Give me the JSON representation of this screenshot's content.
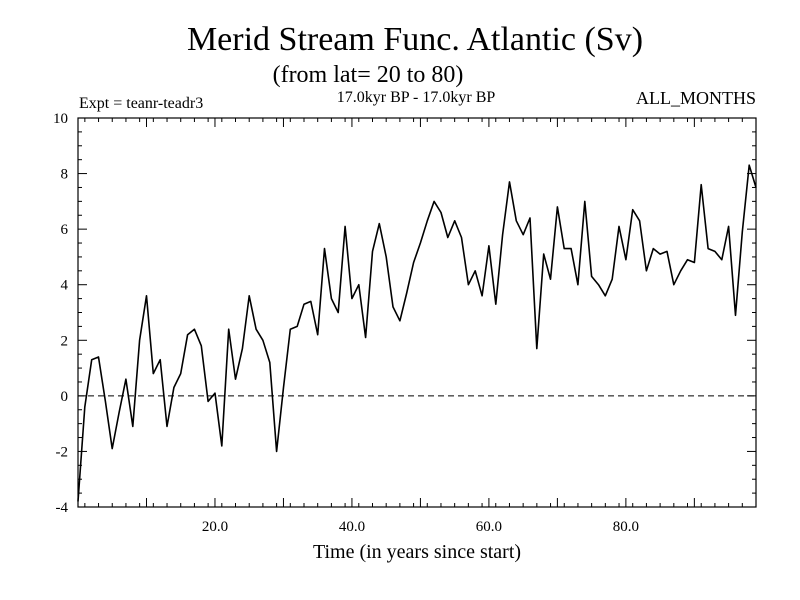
{
  "chart_data": {
    "type": "line",
    "title": "Merid Stream Func. Atlantic (Sv)",
    "subtitle": "(from lat= 20 to 80)",
    "expt_label": "Expt = teanr-teadr3",
    "period_label": "17.0kyr BP - 17.0kyr BP",
    "months_label": "ALL_MONTHS",
    "xlabel": "Time (in years since start)",
    "ylabel": "",
    "xlim": [
      0,
      99
    ],
    "ylim": [
      -4,
      10
    ],
    "x_ticks": [
      20,
      40,
      60,
      80
    ],
    "x_tick_labels": [
      "20.0",
      "40.0",
      "60.0",
      "80.0"
    ],
    "y_ticks": [
      -4,
      -2,
      0,
      2,
      4,
      6,
      8,
      10
    ],
    "y_tick_labels": [
      "-4",
      "-2",
      "0",
      "2",
      "4",
      "6",
      "8",
      "10"
    ],
    "zero_line": "dashed",
    "series": [
      {
        "name": "Merid Stream Func.",
        "x": [
          0,
          1,
          2,
          3,
          4,
          5,
          6,
          7,
          8,
          9,
          10,
          11,
          12,
          13,
          14,
          15,
          16,
          17,
          18,
          19,
          20,
          21,
          22,
          23,
          24,
          25,
          26,
          27,
          28,
          29,
          30,
          31,
          32,
          33,
          34,
          35,
          36,
          37,
          38,
          39,
          40,
          41,
          42,
          43,
          44,
          45,
          46,
          47,
          48,
          49,
          50,
          51,
          52,
          53,
          54,
          55,
          56,
          57,
          58,
          59,
          60,
          61,
          62,
          63,
          64,
          65,
          66,
          67,
          68,
          69,
          70,
          71,
          72,
          73,
          74,
          75,
          76,
          77,
          78,
          79,
          80,
          81,
          82,
          83,
          84,
          85,
          86,
          87,
          88,
          89,
          90,
          91,
          92,
          93,
          94,
          95,
          96,
          97,
          98,
          99
        ],
        "values": [
          -3.8,
          -0.4,
          1.3,
          1.4,
          -0.2,
          -1.9,
          -0.6,
          0.6,
          -1.1,
          2.0,
          3.6,
          0.8,
          1.3,
          -1.1,
          0.3,
          0.8,
          2.2,
          2.4,
          1.8,
          -0.2,
          0.1,
          -1.8,
          2.4,
          0.6,
          1.7,
          3.6,
          2.4,
          2.0,
          1.2,
          -2.0,
          0.3,
          2.4,
          2.5,
          3.3,
          3.4,
          2.2,
          5.3,
          3.5,
          3.0,
          6.1,
          3.5,
          4.0,
          2.1,
          5.2,
          6.2,
          5.0,
          3.2,
          2.7,
          3.7,
          4.8,
          5.5,
          6.3,
          7.0,
          6.6,
          5.7,
          6.3,
          5.7,
          4.0,
          4.5,
          3.6,
          5.4,
          3.3,
          5.8,
          7.7,
          6.3,
          5.8,
          6.4,
          1.7,
          5.1,
          4.2,
          6.8,
          5.3,
          5.3,
          4.0,
          7.0,
          4.3,
          4.0,
          3.6,
          4.2,
          6.1,
          4.9,
          6.7,
          6.3,
          4.5,
          5.3,
          5.1,
          5.2,
          4.0,
          4.5,
          4.9,
          4.8,
          7.6,
          5.3,
          5.2,
          4.9,
          6.1,
          2.9,
          5.9,
          8.3,
          7.5
        ]
      }
    ]
  }
}
